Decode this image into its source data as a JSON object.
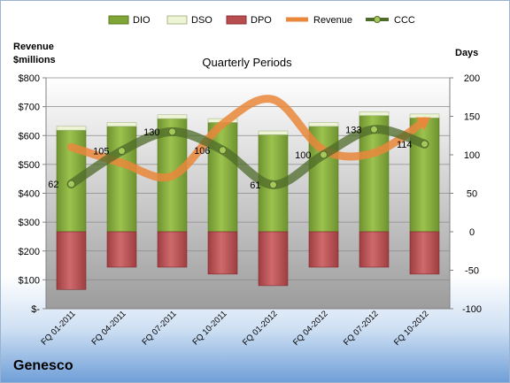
{
  "chart_data": {
    "type": "bar",
    "title": "Quarterly Periods",
    "company": "Genesco",
    "left_axis_label": [
      "Revenue",
      "$millions"
    ],
    "right_axis_label": "Days",
    "left_ticks": [
      "$-",
      "$100",
      "$200",
      "$300",
      "$400",
      "$500",
      "$600",
      "$700",
      "$800"
    ],
    "left_ylim": [
      0,
      800
    ],
    "right_ticks": [
      "-100",
      "-50",
      "0",
      "50",
      "100",
      "150",
      "200"
    ],
    "right_ylim": [
      -100,
      200
    ],
    "categories": [
      "FQ 01-2011",
      "FQ 04-2011",
      "FQ 07-2011",
      "FQ 10-2011",
      "FQ 01-2012",
      "FQ 04-2012",
      "FQ 07-2012",
      "FQ 10-2012"
    ],
    "legend": [
      "DIO",
      "DSO",
      "DPO",
      "Revenue",
      "CCC"
    ],
    "series": [
      {
        "name": "DIO",
        "axis": "right",
        "values": [
          132,
          137,
          147,
          142,
          126,
          137,
          151,
          148
        ]
      },
      {
        "name": "DSO",
        "axis": "right",
        "values": [
          5,
          5,
          5,
          5,
          5,
          5,
          5,
          5
        ]
      },
      {
        "name": "DPO",
        "axis": "right",
        "values": [
          -75,
          -46,
          -46,
          -55,
          -70,
          -46,
          -46,
          -55
        ]
      },
      {
        "name": "Revenue",
        "axis": "left",
        "values": [
          560,
          505,
          460,
          640,
          725,
          550,
          540,
          650
        ]
      },
      {
        "name": "CCC",
        "axis": "right",
        "values": [
          62,
          105,
          130,
          106,
          61,
          100,
          133,
          114
        ]
      }
    ],
    "ccc_labels": [
      "62",
      "105",
      "130",
      "106",
      "61",
      "100",
      "133",
      "114"
    ],
    "colors": {
      "DIO": "#7fa536",
      "DSO": "#eef5d6",
      "DPO": "#b84c4f",
      "Revenue": "#e9873b",
      "CCC": "#4f6b2a"
    },
    "grid": true,
    "legend_position": "top"
  }
}
